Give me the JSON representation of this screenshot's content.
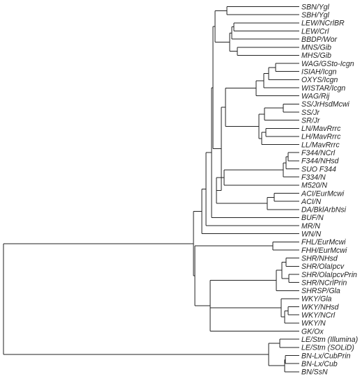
{
  "colors": {
    "line": "#222222",
    "text": "#222222",
    "background": "#ffffff"
  },
  "leaves": [
    "SBN/Ygl",
    "SBH/Ygl",
    "LEW/NCrlBR",
    "LEW/Crl",
    "BBDP/Wor",
    "MNS/Gib",
    "MHS/Gib",
    "WAG/GSto-Icgn",
    "ISIAH/Icgn",
    "OXYS/Icgn",
    "WISTAR/Icgn",
    "WAG/Rij",
    "SS/JrHsdMcwi",
    "SS/Jr",
    "SR/Jr",
    "LN/MavRrrc",
    "LH/MavRrrc",
    "LL/MavRrrc",
    "F344/NCrl",
    "F344/NHsd",
    "SUO F344",
    "F334/N",
    "M520/N",
    "ACI/EurMcwi",
    "ACI/N",
    "DA/BklArbNsi",
    "BUF/N",
    "MR/N",
    "WN/N",
    "FHL/EurMcwi",
    "FHH/EurMcwi",
    "SHR/NHsd",
    "SHR/OlaIpcv",
    "SHR/OlaIpcvPrin",
    "SHR/NCrlPrin",
    "SHRSP/Gla",
    "WKY/Gla",
    "WKY/NHsd",
    "WKY/NCrl",
    "WKY/N",
    "GK/Ox",
    "LE/Stm (Illumina)",
    "LE/Stm (SOLiD)",
    "BN-Lx/CubPrin",
    "BN-Lx/Cub",
    "BN/SsN"
  ]
}
